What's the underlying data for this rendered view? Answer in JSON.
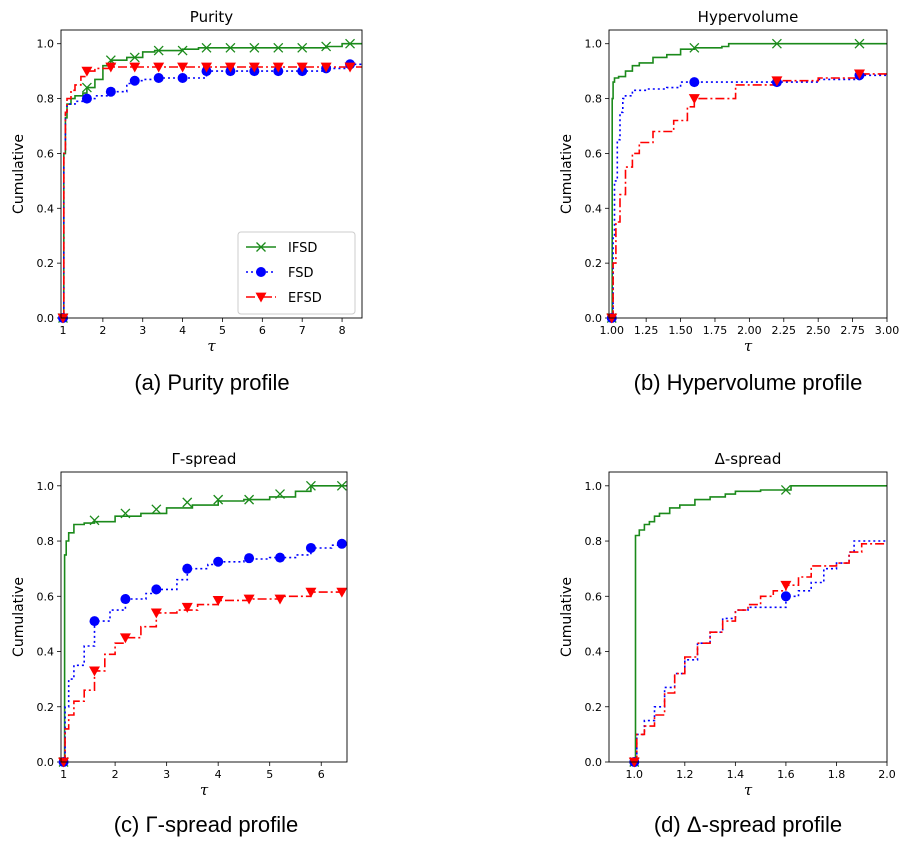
{
  "colors": {
    "IFSD": "#1b8a1b",
    "FSD": "#0000ff",
    "EFSD": "#ff0000"
  },
  "chart_data": [
    {
      "type": "line",
      "title": "Purity",
      "caption": "(a)  Purity profile",
      "xlabel": "τ",
      "ylabel": "Cumulative",
      "xlim": [
        0.95,
        8.5
      ],
      "ylim": [
        0,
        1.05
      ],
      "xticks": [
        1,
        2,
        3,
        4,
        5,
        6,
        7,
        8
      ],
      "xtick_labels": [
        "1",
        "2",
        "3",
        "4",
        "5",
        "6",
        "7",
        "8"
      ],
      "yticks": [
        0.0,
        0.2,
        0.4,
        0.6,
        0.8,
        1.0
      ],
      "ytick_labels": [
        "0.0",
        "0.2",
        "0.4",
        "0.6",
        "0.8",
        "1.0"
      ],
      "legend": {
        "position": "lower-right",
        "entries": [
          "IFSD",
          "FSD",
          "EFSD"
        ]
      },
      "series": [
        {
          "name": "IFSD",
          "style": "solid",
          "marker": "x",
          "x": [
            1,
            1.02,
            1.06,
            1.1,
            1.2,
            1.3,
            1.5,
            1.6,
            1.8,
            2.0,
            2.2,
            2.6,
            2.8,
            3.0,
            3.3,
            3.6,
            4.0,
            4.4,
            5.0,
            6.0,
            7.0,
            7.6,
            8.0,
            8.5
          ],
          "y": [
            0,
            0.6,
            0.73,
            0.78,
            0.8,
            0.81,
            0.82,
            0.84,
            0.87,
            0.92,
            0.94,
            0.95,
            0.95,
            0.97,
            0.975,
            0.975,
            0.98,
            0.985,
            0.985,
            0.985,
            0.985,
            0.99,
            1.0,
            1.0
          ],
          "markers_x": [
            1,
            1.6,
            2.2,
            2.8,
            3.4,
            4.0,
            4.6,
            5.2,
            5.8,
            6.4,
            7.0,
            7.6,
            8.2
          ],
          "markers_y": [
            0,
            0.84,
            0.94,
            0.95,
            0.975,
            0.975,
            0.985,
            0.985,
            0.985,
            0.985,
            0.985,
            0.99,
            1.0
          ]
        },
        {
          "name": "FSD",
          "style": "dotted",
          "marker": "o",
          "x": [
            1,
            1.02,
            1.06,
            1.1,
            1.3,
            1.6,
            1.8,
            2.2,
            2.6,
            2.8,
            3.0,
            3.4,
            4.0,
            4.6,
            5.0,
            6.0,
            7.0,
            7.6,
            8.2,
            8.5
          ],
          "y": [
            0,
            0.6,
            0.75,
            0.78,
            0.79,
            0.8,
            0.81,
            0.825,
            0.855,
            0.865,
            0.87,
            0.875,
            0.875,
            0.9,
            0.9,
            0.9,
            0.9,
            0.91,
            0.925,
            0.925
          ],
          "markers_x": [
            1,
            1.6,
            2.2,
            2.8,
            3.4,
            4.0,
            4.6,
            5.2,
            5.8,
            6.4,
            7.0,
            7.6,
            8.2
          ],
          "markers_y": [
            0,
            0.8,
            0.825,
            0.865,
            0.875,
            0.875,
            0.9,
            0.9,
            0.9,
            0.9,
            0.9,
            0.91,
            0.925
          ]
        },
        {
          "name": "EFSD",
          "style": "dashdot",
          "marker": "v",
          "x": [
            1,
            1.02,
            1.06,
            1.1,
            1.2,
            1.3,
            1.45,
            1.6,
            1.8,
            2.2,
            3.0,
            4.0,
            5.0,
            6.0,
            7.0,
            8.0,
            8.5
          ],
          "y": [
            0,
            0.6,
            0.75,
            0.8,
            0.83,
            0.85,
            0.88,
            0.9,
            0.91,
            0.915,
            0.915,
            0.915,
            0.915,
            0.915,
            0.915,
            0.915,
            0.915
          ],
          "markers_x": [
            1,
            1.6,
            2.2,
            2.8,
            3.4,
            4.0,
            4.6,
            5.2,
            5.8,
            6.4,
            7.0,
            7.6,
            8.2
          ],
          "markers_y": [
            0,
            0.9,
            0.915,
            0.915,
            0.915,
            0.915,
            0.915,
            0.915,
            0.915,
            0.915,
            0.915,
            0.915,
            0.915
          ]
        }
      ]
    },
    {
      "type": "line",
      "title": "Hypervolume",
      "caption": "(b)  Hypervolume profile",
      "xlabel": "τ",
      "ylabel": "Cumulative",
      "xlim": [
        0.98,
        3.0
      ],
      "ylim": [
        0,
        1.05
      ],
      "xticks": [
        1.0,
        1.25,
        1.5,
        1.75,
        2.0,
        2.25,
        2.5,
        2.75,
        3.0
      ],
      "xtick_labels": [
        "1.00",
        "1.25",
        "1.50",
        "1.75",
        "2.00",
        "2.25",
        "2.50",
        "2.75",
        "3.00"
      ],
      "yticks": [
        0.0,
        0.2,
        0.4,
        0.6,
        0.8,
        1.0
      ],
      "ytick_labels": [
        "0.0",
        "0.2",
        "0.4",
        "0.6",
        "0.8",
        "1.0"
      ],
      "series": [
        {
          "name": "IFSD",
          "style": "solid",
          "marker": "x",
          "x": [
            1.0,
            1.003,
            1.01,
            1.02,
            1.05,
            1.1,
            1.15,
            1.2,
            1.3,
            1.4,
            1.5,
            1.6,
            1.8,
            1.85,
            2.2,
            2.8,
            3.0
          ],
          "y": [
            0,
            0.8,
            0.86,
            0.875,
            0.88,
            0.9,
            0.92,
            0.93,
            0.95,
            0.96,
            0.98,
            0.985,
            0.99,
            1.0,
            1.0,
            1.0,
            1.0
          ],
          "markers_x": [
            1.0,
            1.6,
            2.2,
            2.8
          ],
          "markers_y": [
            0,
            0.985,
            1.0,
            1.0
          ]
        },
        {
          "name": "FSD",
          "style": "dotted",
          "marker": "o",
          "x": [
            1.0,
            1.01,
            1.02,
            1.04,
            1.06,
            1.08,
            1.1,
            1.15,
            1.25,
            1.4,
            1.5,
            1.6,
            2.2,
            2.5,
            2.8,
            3.0
          ],
          "y": [
            0,
            0.3,
            0.5,
            0.65,
            0.75,
            0.8,
            0.81,
            0.83,
            0.835,
            0.84,
            0.86,
            0.86,
            0.86,
            0.87,
            0.885,
            0.885
          ],
          "markers_x": [
            1.0,
            1.6,
            2.2,
            2.8
          ],
          "markers_y": [
            0,
            0.86,
            0.86,
            0.885
          ]
        },
        {
          "name": "EFSD",
          "style": "dashdot",
          "marker": "v",
          "x": [
            1.0,
            1.01,
            1.03,
            1.06,
            1.1,
            1.15,
            1.2,
            1.3,
            1.45,
            1.55,
            1.6,
            1.7,
            1.9,
            2.2,
            2.5,
            2.8,
            3.0
          ],
          "y": [
            0,
            0.2,
            0.35,
            0.45,
            0.55,
            0.6,
            0.64,
            0.68,
            0.72,
            0.77,
            0.8,
            0.8,
            0.85,
            0.865,
            0.875,
            0.89,
            0.89
          ],
          "markers_x": [
            1.0,
            1.6,
            2.2,
            2.8
          ],
          "markers_y": [
            0,
            0.8,
            0.865,
            0.89
          ]
        }
      ]
    },
    {
      "type": "line",
      "title": "Γ-spread",
      "caption": "(c)  Γ-spread profile",
      "xlabel": "τ",
      "ylabel": "Cumulative",
      "xlim": [
        0.95,
        6.5
      ],
      "ylim": [
        0,
        1.05
      ],
      "xticks": [
        1,
        2,
        3,
        4,
        5,
        6
      ],
      "xtick_labels": [
        "1",
        "2",
        "3",
        "4",
        "5",
        "6"
      ],
      "yticks": [
        0.0,
        0.2,
        0.4,
        0.6,
        0.8,
        1.0
      ],
      "ytick_labels": [
        "0.0",
        "0.2",
        "0.4",
        "0.6",
        "0.8",
        "1.0"
      ],
      "series": [
        {
          "name": "IFSD",
          "style": "solid",
          "marker": "x",
          "x": [
            1.0,
            1.02,
            1.05,
            1.1,
            1.2,
            1.4,
            1.6,
            2.0,
            2.5,
            3.0,
            3.5,
            4.0,
            4.5,
            5.0,
            5.5,
            5.8,
            6.5
          ],
          "y": [
            0,
            0.75,
            0.8,
            0.83,
            0.86,
            0.865,
            0.87,
            0.89,
            0.9,
            0.92,
            0.93,
            0.945,
            0.95,
            0.96,
            0.98,
            1.0,
            1.0
          ],
          "markers_x": [
            1.0,
            1.6,
            2.2,
            2.8,
            3.4,
            4.0,
            4.6,
            5.2,
            5.8,
            6.4
          ],
          "markers_y": [
            0,
            0.875,
            0.9,
            0.915,
            0.94,
            0.95,
            0.95,
            0.97,
            1.0,
            1.0
          ]
        },
        {
          "name": "FSD",
          "style": "dotted",
          "marker": "o",
          "x": [
            1.0,
            1.03,
            1.1,
            1.2,
            1.4,
            1.6,
            1.9,
            2.2,
            2.6,
            2.8,
            3.2,
            3.4,
            3.8,
            4.0,
            4.5,
            5.0,
            5.5,
            5.8,
            6.2,
            6.5
          ],
          "y": [
            0,
            0.2,
            0.3,
            0.35,
            0.42,
            0.51,
            0.55,
            0.59,
            0.61,
            0.625,
            0.66,
            0.7,
            0.715,
            0.725,
            0.735,
            0.74,
            0.75,
            0.775,
            0.785,
            0.79
          ],
          "markers_x": [
            1.0,
            1.6,
            2.2,
            2.8,
            3.4,
            4.0,
            4.6,
            5.2,
            5.8,
            6.4
          ],
          "markers_y": [
            0,
            0.51,
            0.59,
            0.625,
            0.7,
            0.725,
            0.738,
            0.74,
            0.775,
            0.79
          ]
        },
        {
          "name": "EFSD",
          "style": "dashdot",
          "marker": "v",
          "x": [
            1.0,
            1.03,
            1.1,
            1.2,
            1.4,
            1.6,
            1.8,
            2.0,
            2.2,
            2.5,
            2.8,
            3.2,
            3.6,
            4.0,
            4.6,
            5.2,
            5.8,
            6.5
          ],
          "y": [
            0,
            0.12,
            0.17,
            0.22,
            0.26,
            0.33,
            0.39,
            0.43,
            0.45,
            0.49,
            0.54,
            0.55,
            0.57,
            0.585,
            0.59,
            0.6,
            0.615,
            0.615
          ],
          "markers_x": [
            1.0,
            1.6,
            2.2,
            2.8,
            3.4,
            4.0,
            4.6,
            5.2,
            5.8,
            6.4
          ],
          "markers_y": [
            0,
            0.33,
            0.45,
            0.54,
            0.56,
            0.585,
            0.59,
            0.59,
            0.615,
            0.615
          ]
        }
      ]
    },
    {
      "type": "line",
      "title": "Δ-spread",
      "caption": "(d)  Δ-spread profile",
      "xlabel": "τ",
      "ylabel": "Cumulative",
      "xlim": [
        0.9,
        2.0
      ],
      "ylim": [
        0,
        1.05
      ],
      "xticks": [
        1.0,
        1.2,
        1.4,
        1.6,
        1.8,
        2.0
      ],
      "xtick_labels": [
        "1.0",
        "1.2",
        "1.4",
        "1.6",
        "1.8",
        "2.0"
      ],
      "yticks": [
        0.0,
        0.2,
        0.4,
        0.6,
        0.8,
        1.0
      ],
      "ytick_labels": [
        "0.0",
        "0.2",
        "0.4",
        "0.6",
        "0.8",
        "1.0"
      ],
      "series": [
        {
          "name": "IFSD",
          "style": "solid",
          "marker": "x",
          "x": [
            1.0,
            1.005,
            1.02,
            1.04,
            1.06,
            1.08,
            1.1,
            1.14,
            1.18,
            1.24,
            1.3,
            1.36,
            1.4,
            1.5,
            1.6,
            1.62,
            2.0
          ],
          "y": [
            0,
            0.82,
            0.84,
            0.86,
            0.87,
            0.89,
            0.9,
            0.92,
            0.93,
            0.95,
            0.96,
            0.97,
            0.98,
            0.985,
            0.985,
            1.0,
            1.0
          ],
          "markers_x": [
            1.0,
            1.6
          ],
          "markers_y": [
            0,
            0.985
          ]
        },
        {
          "name": "FSD",
          "style": "dotted",
          "marker": "o",
          "x": [
            1.0,
            1.01,
            1.04,
            1.08,
            1.12,
            1.16,
            1.2,
            1.25,
            1.3,
            1.35,
            1.4,
            1.45,
            1.5,
            1.55,
            1.6,
            1.65,
            1.7,
            1.75,
            1.8,
            1.85,
            1.87,
            2.0
          ],
          "y": [
            0,
            0.1,
            0.15,
            0.2,
            0.27,
            0.32,
            0.37,
            0.43,
            0.47,
            0.52,
            0.55,
            0.56,
            0.56,
            0.56,
            0.6,
            0.62,
            0.65,
            0.7,
            0.72,
            0.76,
            0.8,
            0.8
          ],
          "markers_x": [
            1.0,
            1.6
          ],
          "markers_y": [
            0,
            0.6
          ]
        },
        {
          "name": "EFSD",
          "style": "dashdot",
          "marker": "v",
          "x": [
            1.0,
            1.01,
            1.04,
            1.08,
            1.12,
            1.16,
            1.2,
            1.25,
            1.3,
            1.35,
            1.4,
            1.45,
            1.5,
            1.55,
            1.6,
            1.65,
            1.7,
            1.8,
            1.85,
            1.9,
            2.0
          ],
          "y": [
            0,
            0.1,
            0.13,
            0.17,
            0.25,
            0.32,
            0.38,
            0.43,
            0.47,
            0.51,
            0.55,
            0.57,
            0.6,
            0.62,
            0.64,
            0.67,
            0.71,
            0.72,
            0.76,
            0.79,
            0.79
          ],
          "markers_x": [
            1.0,
            1.6
          ],
          "markers_y": [
            0,
            0.64
          ]
        }
      ]
    }
  ]
}
